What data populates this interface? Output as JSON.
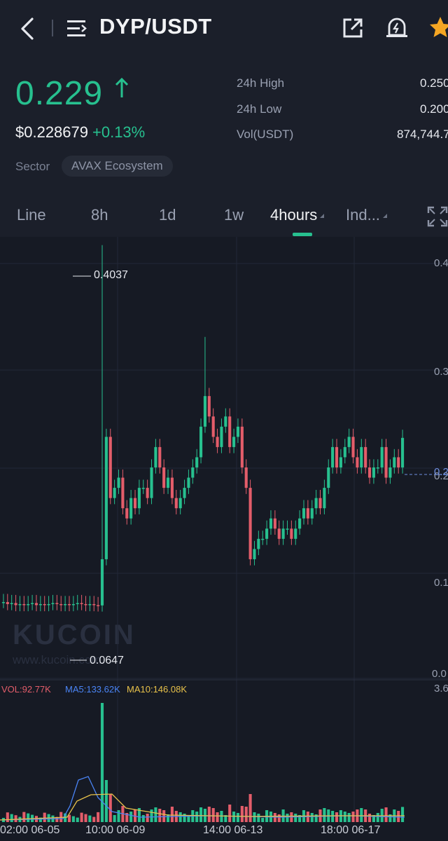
{
  "header": {
    "pair": "DYP/USDT",
    "icons": [
      "back-icon",
      "menu-icon",
      "share-icon",
      "alert-bell-icon",
      "star-icon"
    ]
  },
  "ticker": {
    "last_price": "0.229",
    "usd_price": "$0.228679",
    "change": "+0.13%",
    "sector_label": "Sector",
    "sector_value": "AVAX Ecosystem",
    "stats": [
      {
        "label": "24h High",
        "value": "0.250"
      },
      {
        "label": "24h Low",
        "value": "0.200"
      },
      {
        "label": "Vol(USDT)",
        "value": "874,744.7"
      }
    ],
    "up_color": "#27c08f",
    "down_color": "#e35d6a"
  },
  "tabs": {
    "items": [
      "Line",
      "8h",
      "1d",
      "1w",
      "4hours",
      "Ind..."
    ],
    "active": "4hours"
  },
  "chart": {
    "watermark": "KUCOIN",
    "watermark_url": "www.kucoin.com",
    "high_marker": "0.4037",
    "low_marker": "0.0647",
    "current_tag": "0.2",
    "y_labels": [
      "0.4",
      "0.3",
      "0.2",
      "0.1",
      "0.0"
    ],
    "vol_y_label": "3.6",
    "x_labels": [
      "02:00 06-05",
      "10:00 06-09",
      "14:00 06-13",
      "18:00 06-17"
    ],
    "vol_legend": {
      "vol": "VOL:92.77K",
      "ma5": "MA5:133.62K",
      "ma10": "MA10:146.08K"
    },
    "colors": {
      "ma5": "#4a84f5",
      "ma10": "#e7c14a",
      "vol_label": "#e35d6a"
    }
  }
}
